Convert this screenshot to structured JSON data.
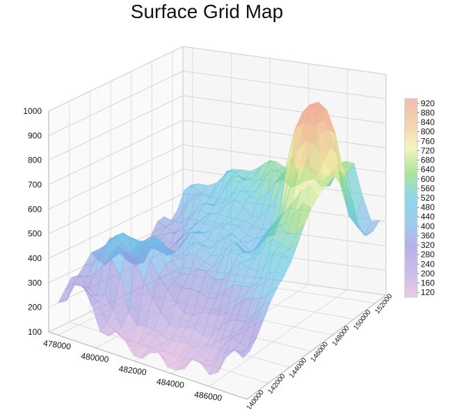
{
  "chart_data": {
    "type": "surface",
    "title": "Surface Grid Map",
    "xlabel": "",
    "ylabel": "",
    "zlabel": "",
    "x_ticks": [
      "478000",
      "480000",
      "482000",
      "484000",
      "486000"
    ],
    "y_ticks": [
      "140000",
      "142000",
      "144000",
      "146000",
      "148000",
      "150000",
      "152000"
    ],
    "z_ticks": [
      "100",
      "200",
      "300",
      "400",
      "500",
      "600",
      "700",
      "800",
      "900",
      "1000"
    ],
    "xlim": [
      477500,
      488000
    ],
    "ylim": [
      140000,
      153000
    ],
    "zlim": [
      100,
      1000
    ],
    "colorbar_ticks": [
      "920",
      "880",
      "840",
      "800",
      "760",
      "720",
      "680",
      "640",
      "600",
      "560",
      "520",
      "480",
      "440",
      "400",
      "360",
      "320",
      "280",
      "240",
      "200",
      "160",
      "120"
    ],
    "colorbar_range": [
      100,
      940
    ],
    "colormap": [
      "#e8b4d8",
      "#b4a0e0",
      "#9a8fdc",
      "#70b8e8",
      "#5cc8e0",
      "#8ad870",
      "#f0f0a0",
      "#f0c090",
      "#f0a090"
    ],
    "grid": true,
    "colorbar_placement": "right",
    "surface_samples": [
      {
        "x": 478000,
        "y": 140000,
        "z": 270
      },
      {
        "x": 478000,
        "y": 146000,
        "z": 310
      },
      {
        "x": 479000,
        "y": 140500,
        "z": 300
      },
      {
        "x": 480000,
        "y": 143000,
        "z": 470
      },
      {
        "x": 481000,
        "y": 141000,
        "z": 150
      },
      {
        "x": 483000,
        "y": 140000,
        "z": 130
      },
      {
        "x": 484000,
        "y": 148000,
        "z": 430
      },
      {
        "x": 485000,
        "y": 152000,
        "z": 560
      },
      {
        "x": 486000,
        "y": 150000,
        "z": 930
      },
      {
        "x": 486000,
        "y": 153000,
        "z": 620
      },
      {
        "x": 487500,
        "y": 152000,
        "z": 400
      }
    ]
  }
}
